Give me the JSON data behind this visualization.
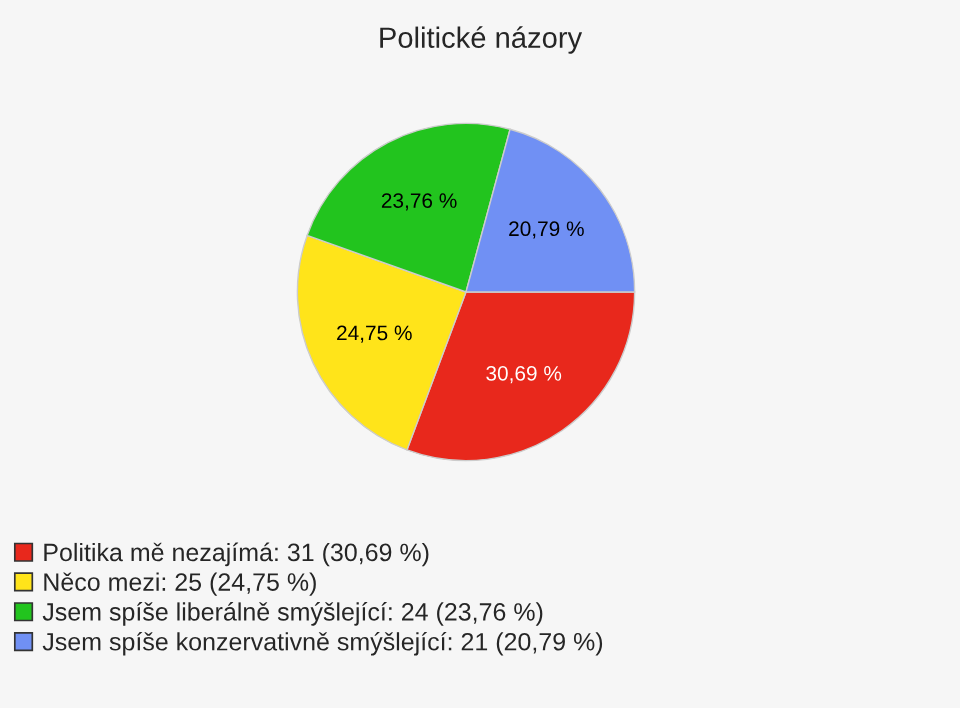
{
  "chart_data": {
    "type": "pie",
    "title": "Politické názory",
    "categories": [
      "Politika mě nezajímá: 31 (30,69 %)",
      "Něco mezi: 25 (24,75 %)",
      "Jsem spíše liberálně smýšlející: 24 (23,76 %)",
      "Jsem spíše konzervativně smýšlející: 21 (20,79 %)"
    ],
    "values": [
      30.69,
      24.75,
      23.76,
      20.79
    ],
    "value_labels": [
      "30,69 %",
      "24,75 %",
      "23,76 %",
      "20,79 %"
    ],
    "colors": [
      "#e8281c",
      "#ffe41a",
      "#22c41e",
      "#7090f4"
    ],
    "legend": "bottom left"
  }
}
